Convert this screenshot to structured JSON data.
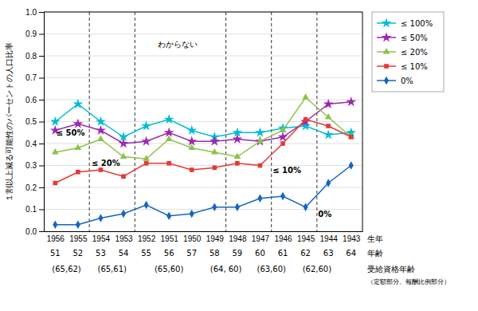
{
  "chart_data": {
    "type": "line",
    "y_label": "１割以上減る可能性のパーセントの人口比率",
    "categories": [
      "1956",
      "1955",
      "1954",
      "1953",
      "1952",
      "1951",
      "1950",
      "1949",
      "1948",
      "1947",
      "1946",
      "1945",
      "1944",
      "1943"
    ],
    "categories_label": "生年",
    "age_labels": [
      "51",
      "52",
      "53",
      "54",
      "55",
      "56",
      "57",
      "58",
      "59",
      "60",
      "61",
      "62",
      "63",
      "64"
    ],
    "age_label": "年齢",
    "eligibility": {
      "label": "受給資格年齢",
      "note": "（定額部分、報酬比例部分）",
      "groups": [
        {
          "x": 0.5,
          "label": "(65,62)"
        },
        {
          "x": 2.5,
          "label": "(65,61)"
        },
        {
          "x": 5.0,
          "label": "(65,60)"
        },
        {
          "x": 7.5,
          "label": "(64, 60)"
        },
        {
          "x": 9.5,
          "label": "(63,60)"
        },
        {
          "x": 11.5,
          "label": "(62,60)"
        }
      ]
    },
    "vlines": [
      1.5,
      3.5,
      7.5,
      9.5,
      11.5
    ],
    "series": [
      {
        "name": "≤ 100%",
        "color": "#00bcd4",
        "marker": "star",
        "values": [
          0.5,
          0.58,
          0.5,
          0.43,
          0.48,
          0.51,
          0.46,
          0.43,
          0.45,
          0.45,
          0.47,
          0.48,
          0.44,
          0.45
        ]
      },
      {
        "name": "≤ 50%",
        "color": "#9c27b0",
        "marker": "star",
        "values": [
          0.46,
          0.49,
          0.46,
          0.4,
          0.41,
          0.45,
          0.41,
          0.41,
          0.42,
          0.41,
          0.43,
          0.5,
          0.58,
          0.59
        ]
      },
      {
        "name": "≤ 20%",
        "color": "#8bc34a",
        "marker": "triangle",
        "values": [
          0.36,
          0.38,
          0.42,
          0.34,
          0.33,
          0.42,
          0.38,
          0.36,
          0.34,
          0.41,
          0.46,
          0.61,
          0.52,
          0.43
        ]
      },
      {
        "name": "≤ 10%",
        "color": "#e53935",
        "marker": "square",
        "values": [
          0.22,
          0.27,
          0.28,
          0.25,
          0.31,
          0.31,
          0.28,
          0.29,
          0.31,
          0.3,
          0.4,
          0.51,
          0.48,
          0.43
        ]
      },
      {
        "name": "0%",
        "color": "#1565c0",
        "marker": "diamond",
        "values": [
          0.03,
          0.03,
          0.06,
          0.08,
          0.12,
          0.07,
          0.08,
          0.11,
          0.11,
          0.15,
          0.16,
          0.11,
          0.22,
          0.3
        ]
      }
    ],
    "annotations": [
      {
        "text": "わからない",
        "x": 4.5,
        "y": 0.84
      },
      {
        "text": "≤ 50%",
        "x": 0.05,
        "y": 0.435
      },
      {
        "text": "≤ 20%",
        "x": 1.6,
        "y": 0.3
      },
      {
        "text": "≤ 10%",
        "x": 9.55,
        "y": 0.265
      },
      {
        "text": "0%",
        "x": 11.55,
        "y": 0.065
      }
    ],
    "ylim": [
      0.0,
      1.0
    ],
    "yticks": [
      {
        "value": 0.0,
        "label": "0.0"
      },
      0.1,
      0.2,
      0.3,
      0.4,
      0.5,
      0.6,
      0.7,
      0.8,
      0.9,
      {
        "value": 1.0,
        "label": "1.0"
      }
    ],
    "grid": true,
    "legend": "right"
  }
}
